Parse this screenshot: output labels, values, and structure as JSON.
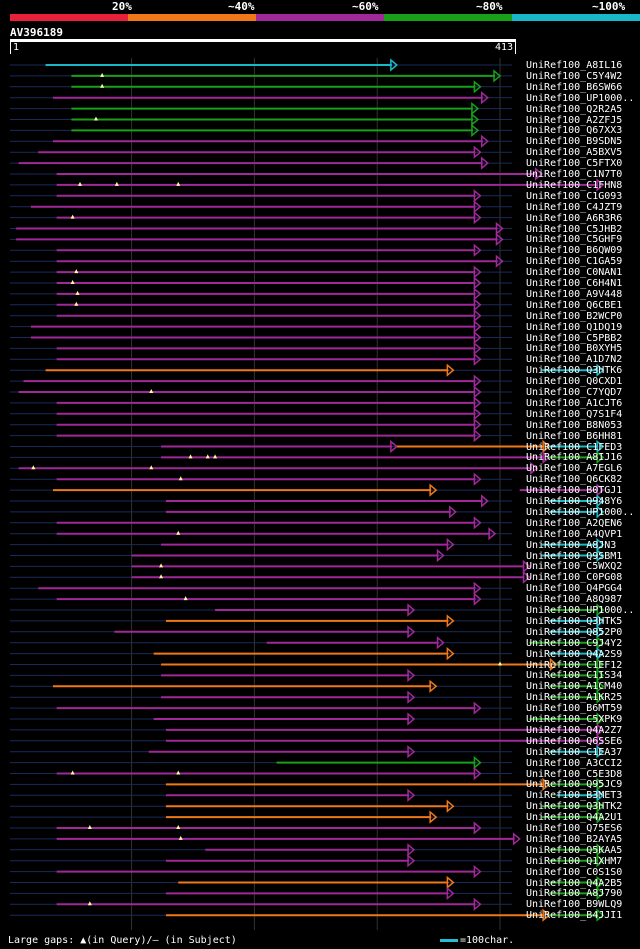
{
  "legend": {
    "segments": [
      {
        "label": "20%",
        "color": "#e8203a"
      },
      {
        "label": "~40%",
        "color": "#f07818"
      },
      {
        "label": "~60%",
        "color": "#a02898"
      },
      {
        "label": "~80%",
        "color": "#18a018"
      },
      {
        "label": "~100%",
        "color": "#18b8c8"
      }
    ]
  },
  "query": {
    "name": "AV396189",
    "start_label": "1",
    "end_label": "413",
    "length": 413
  },
  "footer": {
    "gaps_text": "Large gaps: ▲(in Query)/– (in Subject)",
    "scale_text": "=100char."
  },
  "chart_data": {
    "type": "alignment",
    "x_range": [
      1,
      413
    ],
    "hits": [
      {
        "name": "UniRef100_A8IL16",
        "segs": [
          {
            "s": 30,
            "e": 316,
            "c": "cyan"
          }
        ],
        "qg": []
      },
      {
        "name": "UniRef100_C5Y4W2",
        "segs": [
          {
            "s": 51,
            "e": 400,
            "c": "green"
          }
        ],
        "qg": [
          76
        ]
      },
      {
        "name": "UniRef100_B6SW66",
        "segs": [
          {
            "s": 51,
            "e": 384,
            "c": "green"
          }
        ],
        "qg": [
          76
        ]
      },
      {
        "name": "UniRef100_UP1000..",
        "segs": [
          {
            "s": 36,
            "e": 390,
            "c": "purple"
          }
        ],
        "qg": []
      },
      {
        "name": "UniRef100_Q2R2A5",
        "segs": [
          {
            "s": 51,
            "e": 382,
            "c": "green"
          }
        ],
        "qg": []
      },
      {
        "name": "UniRef100_A2ZFJ5",
        "segs": [
          {
            "s": 51,
            "e": 382,
            "c": "green"
          }
        ],
        "qg": [
          71
        ]
      },
      {
        "name": "UniRef100_Q67XX3",
        "segs": [
          {
            "s": 51,
            "e": 382,
            "c": "green"
          }
        ],
        "qg": []
      },
      {
        "name": "UniRef100_B9SDN5",
        "segs": [
          {
            "s": 36,
            "e": 390,
            "c": "purple"
          }
        ],
        "qg": []
      },
      {
        "name": "UniRef100_A5BXV5",
        "segs": [
          {
            "s": 24,
            "e": 384,
            "c": "purple"
          }
        ],
        "qg": []
      },
      {
        "name": "UniRef100_C5FTX0",
        "segs": [
          {
            "s": 8,
            "e": 390,
            "c": "purple"
          }
        ],
        "qg": []
      },
      {
        "name": "UniRef100_C1N7T0",
        "segs": [
          {
            "s": 39,
            "e": 434,
            "c": "purple"
          }
        ],
        "qg": []
      },
      {
        "name": "UniRef100_C1FHN8",
        "segs": [
          {
            "s": 39,
            "e": 484,
            "c": "purple"
          }
        ],
        "qg": [
          58,
          88,
          138
        ]
      },
      {
        "name": "UniRef100_C1G093",
        "segs": [
          {
            "s": 39,
            "e": 384,
            "c": "purple"
          }
        ],
        "qg": []
      },
      {
        "name": "UniRef100_C4JZT9",
        "segs": [
          {
            "s": 18,
            "e": 384,
            "c": "purple"
          }
        ],
        "qg": []
      },
      {
        "name": "UniRef100_A6R3R6",
        "segs": [
          {
            "s": 39,
            "e": 384,
            "c": "purple"
          }
        ],
        "qg": [
          52
        ]
      },
      {
        "name": "UniRef100_C5JHB2",
        "segs": [
          {
            "s": 6,
            "e": 402,
            "c": "purple"
          }
        ],
        "qg": []
      },
      {
        "name": "UniRef100_C5GHF9",
        "segs": [
          {
            "s": 6,
            "e": 402,
            "c": "purple"
          }
        ],
        "qg": []
      },
      {
        "name": "UniRef100_B6QW09",
        "segs": [
          {
            "s": 39,
            "e": 384,
            "c": "purple"
          }
        ],
        "qg": []
      },
      {
        "name": "UniRef100_C1GA59",
        "segs": [
          {
            "s": 39,
            "e": 402,
            "c": "purple"
          }
        ],
        "qg": []
      },
      {
        "name": "UniRef100_C0NAN1",
        "segs": [
          {
            "s": 39,
            "e": 384,
            "c": "purple"
          }
        ],
        "qg": [
          55
        ]
      },
      {
        "name": "UniRef100_C6H4N1",
        "segs": [
          {
            "s": 39,
            "e": 384,
            "c": "purple"
          }
        ],
        "qg": [
          52
        ]
      },
      {
        "name": "UniRef100_A9V448",
        "segs": [
          {
            "s": 39,
            "e": 384,
            "c": "purple"
          }
        ],
        "qg": [
          56
        ]
      },
      {
        "name": "UniRef100_Q6CBE1",
        "segs": [
          {
            "s": 39,
            "e": 384,
            "c": "purple"
          }
        ],
        "qg": [
          55
        ]
      },
      {
        "name": "UniRef100_B2WCP0",
        "segs": [
          {
            "s": 39,
            "e": 384,
            "c": "purple"
          }
        ],
        "qg": []
      },
      {
        "name": "UniRef100_Q1DQ19",
        "segs": [
          {
            "s": 18,
            "e": 384,
            "c": "purple"
          }
        ],
        "qg": []
      },
      {
        "name": "UniRef100_C5PBB2",
        "segs": [
          {
            "s": 18,
            "e": 384,
            "c": "purple"
          }
        ],
        "qg": []
      },
      {
        "name": "UniRef100_B0XYH5",
        "segs": [
          {
            "s": 39,
            "e": 384,
            "c": "purple"
          }
        ],
        "qg": []
      },
      {
        "name": "UniRef100_A1D7N2",
        "segs": [
          {
            "s": 39,
            "e": 384,
            "c": "purple"
          }
        ],
        "qg": []
      },
      {
        "name": "UniRef100_Q3HTK6",
        "segs": [
          {
            "s": 30,
            "e": 362,
            "c": "orange"
          },
          {
            "s": 434,
            "e": 484,
            "c": "cyan"
          }
        ],
        "qg": []
      },
      {
        "name": "UniRef100_Q0CXD1",
        "segs": [
          {
            "s": 12,
            "e": 384,
            "c": "purple"
          }
        ],
        "qg": []
      },
      {
        "name": "UniRef100_C7YQD7",
        "segs": [
          {
            "s": 8,
            "e": 384,
            "c": "purple"
          }
        ],
        "qg": [
          116
        ]
      },
      {
        "name": "UniRef100_A1CJT6",
        "segs": [
          {
            "s": 39,
            "e": 384,
            "c": "purple"
          }
        ],
        "qg": []
      },
      {
        "name": "UniRef100_Q7S1F4",
        "segs": [
          {
            "s": 39,
            "e": 384,
            "c": "purple"
          }
        ],
        "qg": []
      },
      {
        "name": "UniRef100_B8N053",
        "segs": [
          {
            "s": 39,
            "e": 384,
            "c": "purple"
          }
        ],
        "qg": []
      },
      {
        "name": "UniRef100_B6HH81",
        "segs": [
          {
            "s": 39,
            "e": 384,
            "c": "purple"
          }
        ],
        "qg": []
      },
      {
        "name": "UniRef100_C1FED3",
        "segs": [
          {
            "s": 124,
            "e": 316,
            "c": "purple"
          },
          {
            "s": 316,
            "e": 440,
            "c": "orange"
          },
          {
            "s": 440,
            "e": 484,
            "c": "cyan"
          }
        ],
        "qg": []
      },
      {
        "name": "UniRef100_A8IJ16",
        "segs": [
          {
            "s": 124,
            "e": 440,
            "c": "purple"
          },
          {
            "s": 440,
            "e": 484,
            "c": "green"
          }
        ],
        "qg": [
          148,
          162,
          168
        ]
      },
      {
        "name": "UniRef100_A7EGL6",
        "segs": [
          {
            "s": 8,
            "e": 430,
            "c": "purple"
          }
        ],
        "qg": [
          20,
          116
        ]
      },
      {
        "name": "UniRef100_Q6CK82",
        "segs": [
          {
            "s": 39,
            "e": 384,
            "c": "purple"
          }
        ],
        "qg": [
          140
        ]
      },
      {
        "name": "UniRef100_B0TGJ1",
        "segs": [
          {
            "s": 36,
            "e": 348,
            "c": "orange"
          },
          {
            "s": 416,
            "e": 484,
            "c": "purple"
          }
        ],
        "qg": []
      },
      {
        "name": "UniRef100_Q948Y6",
        "segs": [
          {
            "s": 128,
            "e": 390,
            "c": "purple"
          },
          {
            "s": 440,
            "e": 484,
            "c": "cyan"
          }
        ],
        "qg": []
      },
      {
        "name": "UniRef100_UP1000..",
        "segs": [
          {
            "s": 128,
            "e": 364,
            "c": "purple"
          },
          {
            "s": 440,
            "e": 484,
            "c": "cyan"
          }
        ],
        "qg": []
      },
      {
        "name": "UniRef100_A2QEN6",
        "segs": [
          {
            "s": 39,
            "e": 384,
            "c": "purple"
          }
        ],
        "qg": []
      },
      {
        "name": "UniRef100_A4QVP1",
        "segs": [
          {
            "s": 39,
            "e": 396,
            "c": "purple"
          }
        ],
        "qg": [
          138
        ]
      },
      {
        "name": "UniRef100_A8JN3",
        "segs": [
          {
            "s": 124,
            "e": 362,
            "c": "purple"
          },
          {
            "s": 434,
            "e": 484,
            "c": "cyan"
          }
        ],
        "qg": []
      },
      {
        "name": "UniRef100_Q9SBM1",
        "segs": [
          {
            "s": 100,
            "e": 354,
            "c": "purple"
          },
          {
            "s": 434,
            "e": 484,
            "c": "cyan"
          }
        ],
        "qg": []
      },
      {
        "name": "UniRef100_C5WXQ2",
        "segs": [
          {
            "s": 100,
            "e": 424,
            "c": "purple"
          }
        ],
        "qg": [
          124
        ]
      },
      {
        "name": "UniRef100_C0PG08",
        "segs": [
          {
            "s": 100,
            "e": 424,
            "c": "purple"
          }
        ],
        "qg": [
          124
        ]
      },
      {
        "name": "UniRef100_Q4PGG4",
        "segs": [
          {
            "s": 24,
            "e": 384,
            "c": "purple"
          }
        ],
        "qg": []
      },
      {
        "name": "UniRef100_A8Q987",
        "segs": [
          {
            "s": 39,
            "e": 384,
            "c": "purple"
          }
        ],
        "qg": [
          144
        ]
      },
      {
        "name": "UniRef100_UP1000..",
        "segs": [
          {
            "s": 168,
            "e": 330,
            "c": "purple"
          },
          {
            "s": 440,
            "e": 484,
            "c": "green"
          }
        ],
        "qg": []
      },
      {
        "name": "UniRef100_Q3HTK5",
        "segs": [
          {
            "s": 128,
            "e": 362,
            "c": "orange"
          },
          {
            "s": 440,
            "e": 484,
            "c": "cyan"
          }
        ],
        "qg": []
      },
      {
        "name": "UniRef100_Q852P0",
        "segs": [
          {
            "s": 86,
            "e": 330,
            "c": "purple"
          },
          {
            "s": 440,
            "e": 484,
            "c": "cyan"
          }
        ],
        "qg": []
      },
      {
        "name": "UniRef100_C9J4Y2",
        "segs": [
          {
            "s": 210,
            "e": 354,
            "c": "purple"
          },
          {
            "s": 424,
            "e": 484,
            "c": "green"
          }
        ],
        "qg": []
      },
      {
        "name": "UniRef100_Q4A2S9",
        "segs": [
          {
            "s": 118,
            "e": 362,
            "c": "orange"
          },
          {
            "s": 440,
            "e": 484,
            "c": "cyan"
          }
        ],
        "qg": []
      },
      {
        "name": "UniRef100_C1EF12",
        "segs": [
          {
            "s": 124,
            "e": 446,
            "c": "orange"
          },
          {
            "s": 446,
            "e": 484,
            "c": "green"
          }
        ],
        "qg": [
          400
        ]
      },
      {
        "name": "UniRef100_C1IS34",
        "segs": [
          {
            "s": 124,
            "e": 330,
            "c": "purple"
          },
          {
            "s": 440,
            "e": 484,
            "c": "green"
          }
        ],
        "qg": []
      },
      {
        "name": "UniRef100_A1CM40",
        "segs": [
          {
            "s": 36,
            "e": 348,
            "c": "orange"
          },
          {
            "s": 440,
            "e": 484,
            "c": "green"
          }
        ],
        "qg": []
      },
      {
        "name": "UniRef100_A1KR25",
        "segs": [
          {
            "s": 124,
            "e": 330,
            "c": "purple"
          },
          {
            "s": 440,
            "e": 484,
            "c": "green"
          }
        ],
        "qg": []
      },
      {
        "name": "UniRef100_B6MT59",
        "segs": [
          {
            "s": 39,
            "e": 384,
            "c": "purple"
          }
        ],
        "qg": []
      },
      {
        "name": "UniRef100_C5XPK9",
        "segs": [
          {
            "s": 118,
            "e": 330,
            "c": "purple"
          },
          {
            "s": 424,
            "e": 484,
            "c": "green"
          }
        ],
        "qg": []
      },
      {
        "name": "UniRef100_Q4A2Z7",
        "segs": [
          {
            "s": 128,
            "e": 484,
            "c": "purple"
          }
        ],
        "qg": []
      },
      {
        "name": "UniRef100_Q6SSE6",
        "segs": [
          {
            "s": 128,
            "e": 484,
            "c": "purple"
          }
        ],
        "qg": []
      },
      {
        "name": "UniRef100_C1EA37",
        "segs": [
          {
            "s": 114,
            "e": 330,
            "c": "purple"
          },
          {
            "s": 440,
            "e": 484,
            "c": "cyan"
          }
        ],
        "qg": []
      },
      {
        "name": "UniRef100_A3CCI2",
        "segs": [
          {
            "s": 218,
            "e": 384,
            "c": "green"
          }
        ],
        "qg": []
      },
      {
        "name": "UniRef100_C5E3D8",
        "segs": [
          {
            "s": 39,
            "e": 384,
            "c": "purple"
          }
        ],
        "qg": [
          52,
          138
        ]
      },
      {
        "name": "UniRef100_Q95JC9",
        "segs": [
          {
            "s": 128,
            "e": 440,
            "c": "orange"
          },
          {
            "s": 440,
            "e": 484,
            "c": "green"
          }
        ],
        "qg": []
      },
      {
        "name": "UniRef100_B3MET3",
        "segs": [
          {
            "s": 128,
            "e": 330,
            "c": "purple"
          },
          {
            "s": 446,
            "e": 484,
            "c": "cyan"
          }
        ],
        "qg": []
      },
      {
        "name": "UniRef100_Q3HTK2",
        "segs": [
          {
            "s": 128,
            "e": 362,
            "c": "orange"
          },
          {
            "s": 434,
            "e": 484,
            "c": "green"
          }
        ],
        "qg": []
      },
      {
        "name": "UniRef100_Q4A2U1",
        "segs": [
          {
            "s": 128,
            "e": 348,
            "c": "orange"
          },
          {
            "s": 434,
            "e": 484,
            "c": "green"
          }
        ],
        "qg": []
      },
      {
        "name": "UniRef100_Q75ES6",
        "segs": [
          {
            "s": 39,
            "e": 384,
            "c": "purple"
          }
        ],
        "qg": [
          66,
          138
        ]
      },
      {
        "name": "UniRef100_B2AYA5",
        "segs": [
          {
            "s": 39,
            "e": 416,
            "c": "purple"
          }
        ],
        "qg": [
          140
        ]
      },
      {
        "name": "UniRef100_Q5KAA5",
        "segs": [
          {
            "s": 160,
            "e": 330,
            "c": "purple"
          },
          {
            "s": 440,
            "e": 484,
            "c": "green"
          }
        ],
        "qg": []
      },
      {
        "name": "UniRef100_Q1XHM7",
        "segs": [
          {
            "s": 128,
            "e": 330,
            "c": "purple"
          },
          {
            "s": 440,
            "e": 484,
            "c": "green"
          }
        ],
        "qg": []
      },
      {
        "name": "UniRef100_C0S1S0",
        "segs": [
          {
            "s": 39,
            "e": 384,
            "c": "purple"
          }
        ],
        "qg": []
      },
      {
        "name": "UniRef100_Q4A2B5",
        "segs": [
          {
            "s": 138,
            "e": 362,
            "c": "orange"
          },
          {
            "s": 440,
            "e": 484,
            "c": "green"
          }
        ],
        "qg": []
      },
      {
        "name": "UniRef100_A8J790",
        "segs": [
          {
            "s": 128,
            "e": 362,
            "c": "purple"
          },
          {
            "s": 440,
            "e": 484,
            "c": "green"
          }
        ],
        "qg": []
      },
      {
        "name": "UniRef100_B9WLQ9",
        "segs": [
          {
            "s": 39,
            "e": 384,
            "c": "purple"
          }
        ],
        "qg": [
          66
        ]
      },
      {
        "name": "UniRef100_B4JJI1",
        "segs": [
          {
            "s": 128,
            "e": 440,
            "c": "orange"
          },
          {
            "s": 440,
            "e": 484,
            "c": "green"
          }
        ],
        "qg": []
      }
    ]
  }
}
